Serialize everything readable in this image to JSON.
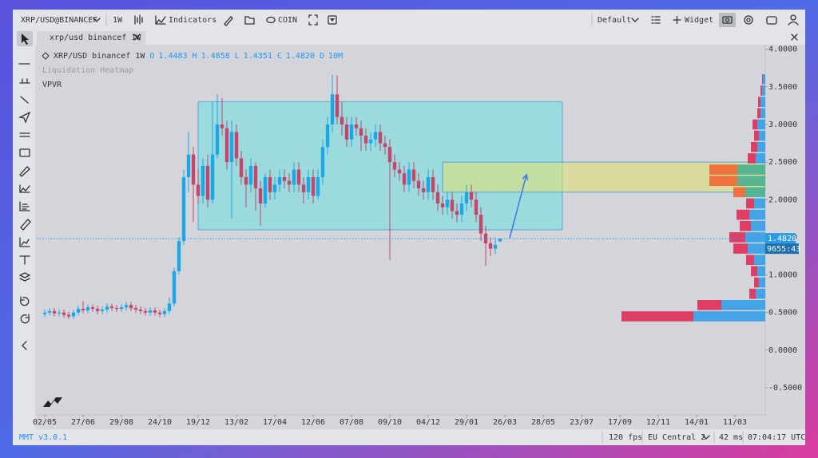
{
  "toolbar": {
    "symbol": "XRP/USD@BINANCEF",
    "interval": "1W",
    "indicators": "Indicators",
    "coin": "COIN",
    "layout": "Default",
    "widget": "Widget"
  },
  "tab": {
    "title": "xrp/usd binancef 1W"
  },
  "legend": {
    "symbol": "XRP/USD binancef 1W",
    "open_label": "O",
    "open": "1.4483",
    "high_label": "H",
    "high": "1.4858",
    "low_label": "L",
    "low": "1.4351",
    "close_label": "C",
    "close": "1.4820",
    "delta_label": "D",
    "volume": "10M"
  },
  "overlays": [
    "Liquidation Heatmap",
    "VPVR"
  ],
  "countdown": "9655:43",
  "status": {
    "version": "MMT v3.0.1",
    "fps": "120 fps",
    "region": "EU Central 2",
    "latency": "42 ms",
    "clock": "07:04:17 UTC"
  },
  "chart_data": {
    "type": "candlestick",
    "up_color": "#1ea7e6",
    "down_color": "#c4466a",
    "open": [
      0.48,
      0.5,
      0.52,
      0.49,
      0.5,
      0.47,
      0.45,
      0.5,
      0.55,
      0.53,
      0.57,
      0.55,
      0.52,
      0.54,
      0.58,
      0.56,
      0.55,
      0.57,
      0.6,
      0.56,
      0.54,
      0.52,
      0.5,
      0.53,
      0.5,
      0.48,
      0.52,
      0.62,
      1.05,
      1.45,
      2.3,
      2.6,
      2.2,
      2.05,
      2.45,
      2.0,
      2.6,
      3.0,
      2.95,
      2.5,
      2.9,
      2.55,
      2.3,
      2.2,
      2.45,
      2.15,
      1.95,
      2.3,
      2.1,
      2.2,
      2.3,
      2.25,
      2.2,
      2.4,
      2.2,
      2.1,
      2.3,
      2.05,
      2.3,
      2.7,
      3.0,
      3.4,
      3.1,
      3.0,
      2.8,
      3.0,
      2.95,
      2.85,
      2.75,
      2.8,
      2.9,
      2.75,
      2.7,
      2.5,
      2.4,
      2.35,
      2.2,
      2.4,
      2.25,
      2.15,
      2.1,
      2.3,
      2.1,
      1.95,
      1.9,
      2.0,
      1.85,
      1.8,
      1.95,
      2.1,
      2.0,
      1.8,
      1.55,
      1.42,
      1.35,
      1.4483
    ],
    "high": [
      0.54,
      0.56,
      0.56,
      0.54,
      0.54,
      0.51,
      0.54,
      0.59,
      0.65,
      0.61,
      0.61,
      0.59,
      0.58,
      0.62,
      0.62,
      0.6,
      0.61,
      0.64,
      0.64,
      0.6,
      0.58,
      0.56,
      0.57,
      0.57,
      0.54,
      0.56,
      0.7,
      1.1,
      1.5,
      2.4,
      2.9,
      2.7,
      2.4,
      2.55,
      2.6,
      3.3,
      3.4,
      3.35,
      3.05,
      3.05,
      3.0,
      2.65,
      2.4,
      2.55,
      2.5,
      2.25,
      2.35,
      2.4,
      2.3,
      2.4,
      2.4,
      2.35,
      2.5,
      2.5,
      2.3,
      2.4,
      2.4,
      2.4,
      2.8,
      3.1,
      3.66,
      3.65,
      3.3,
      3.1,
      3.1,
      3.1,
      3.05,
      2.95,
      2.9,
      3.0,
      3.0,
      2.85,
      2.8,
      2.6,
      2.5,
      2.45,
      2.5,
      2.5,
      2.35,
      2.25,
      2.4,
      2.4,
      2.2,
      2.05,
      2.1,
      2.1,
      1.95,
      2.05,
      2.2,
      2.2,
      2.1,
      1.9,
      1.65,
      1.5,
      1.5,
      1.4858
    ],
    "low": [
      0.44,
      0.46,
      0.45,
      0.45,
      0.43,
      0.41,
      0.41,
      0.46,
      0.49,
      0.49,
      0.51,
      0.48,
      0.48,
      0.5,
      0.52,
      0.51,
      0.51,
      0.53,
      0.52,
      0.5,
      0.48,
      0.46,
      0.46,
      0.46,
      0.44,
      0.44,
      0.48,
      0.58,
      1.0,
      1.4,
      2.1,
      1.7,
      1.95,
      1.95,
      1.9,
      1.95,
      2.55,
      2.85,
      2.4,
      1.75,
      2.45,
      2.2,
      1.9,
      2.1,
      1.85,
      1.65,
      1.9,
      2.0,
      2.0,
      2.1,
      2.15,
      2.1,
      2.1,
      2.1,
      1.95,
      2.0,
      1.95,
      2.0,
      2.2,
      2.6,
      2.9,
      3.0,
      2.85,
      2.7,
      2.7,
      2.85,
      2.65,
      2.65,
      2.65,
      2.7,
      2.65,
      2.6,
      1.2,
      2.3,
      2.25,
      2.1,
      2.1,
      2.15,
      2.05,
      2.0,
      2.0,
      2.0,
      1.85,
      1.8,
      1.8,
      1.75,
      1.7,
      1.7,
      1.85,
      1.9,
      1.7,
      1.45,
      1.12,
      1.25,
      1.28,
      1.4351
    ],
    "close": [
      0.5,
      0.52,
      0.49,
      0.5,
      0.47,
      0.45,
      0.5,
      0.55,
      0.53,
      0.57,
      0.55,
      0.52,
      0.54,
      0.58,
      0.56,
      0.55,
      0.57,
      0.6,
      0.56,
      0.54,
      0.52,
      0.5,
      0.53,
      0.5,
      0.48,
      0.52,
      0.62,
      1.05,
      1.45,
      2.3,
      2.6,
      2.2,
      2.05,
      2.45,
      2.0,
      2.6,
      3.0,
      2.95,
      2.5,
      2.9,
      2.55,
      2.3,
      2.2,
      2.45,
      2.15,
      1.95,
      2.3,
      2.1,
      2.2,
      2.3,
      2.25,
      2.2,
      2.4,
      2.2,
      2.1,
      2.3,
      2.05,
      2.3,
      2.7,
      3.0,
      3.4,
      3.1,
      3.0,
      2.8,
      3.0,
      2.95,
      2.85,
      2.75,
      2.8,
      2.9,
      2.75,
      2.7,
      2.5,
      2.4,
      2.35,
      2.2,
      2.4,
      2.25,
      2.15,
      2.1,
      2.3,
      2.1,
      1.95,
      1.9,
      2.0,
      1.85,
      1.8,
      1.95,
      2.1,
      2.0,
      1.8,
      1.55,
      1.42,
      1.35,
      1.4,
      1.482
    ],
    "xlim": [
      -1.67,
      150.33
    ],
    "xticks": [
      {
        "value": 0,
        "label": "02/05"
      },
      {
        "value": 8,
        "label": "27/06"
      },
      {
        "value": 16,
        "label": "29/08"
      },
      {
        "value": 24,
        "label": "24/10"
      },
      {
        "value": 32,
        "label": "19/12"
      },
      {
        "value": 40,
        "label": "13/02"
      },
      {
        "value": 48,
        "label": "17/04"
      },
      {
        "value": 56,
        "label": "12/06"
      },
      {
        "value": 64,
        "label": "07/08"
      },
      {
        "value": 72,
        "label": "09/10"
      },
      {
        "value": 80,
        "label": "04/12"
      },
      {
        "value": 88,
        "label": "29/01"
      },
      {
        "value": 96,
        "label": "26/03"
      },
      {
        "value": 104,
        "label": "28/05"
      },
      {
        "value": 112,
        "label": "23/07"
      },
      {
        "value": 120,
        "label": "17/09"
      },
      {
        "value": 128,
        "label": "12/11"
      },
      {
        "value": 136,
        "label": "14/01"
      },
      {
        "value": 144,
        "label": "11/03"
      }
    ],
    "ylim": [
      -0.86,
      4.06
    ],
    "yticks": [
      {
        "value": 4,
        "label": "4.0000"
      },
      {
        "value": 3.5,
        "label": "3.5000"
      },
      {
        "value": 3,
        "label": "3.0000"
      },
      {
        "value": 2.5,
        "label": "2.5000"
      },
      {
        "value": 2,
        "label": "2.0000"
      },
      {
        "value": 1.5,
        "label": "1.5000"
      },
      {
        "value": 1,
        "label": "1.0000"
      },
      {
        "value": 0.5,
        "label": "0.5000"
      },
      {
        "value": 0,
        "label": "0.0000"
      },
      {
        "value": -0.5,
        "label": "-0.5000"
      }
    ],
    "volume_profile": {
      "prices": [
        0.45,
        0.6,
        0.75,
        0.9,
        1.05,
        1.2,
        1.35,
        1.5,
        1.65,
        1.8,
        1.95,
        2.1,
        2.25,
        2.4,
        2.55,
        2.7,
        2.85,
        3.0,
        3.15,
        3.3,
        3.45,
        3.6
      ],
      "buy": [
        90,
        55,
        12,
        8,
        10,
        14,
        22,
        25,
        18,
        20,
        14,
        25,
        35,
        35,
        12,
        10,
        8,
        10,
        6,
        6,
        4,
        3
      ],
      "sell": [
        90,
        30,
        8,
        6,
        8,
        10,
        18,
        20,
        14,
        16,
        10,
        15,
        35,
        35,
        10,
        8,
        6,
        6,
        4,
        3,
        2,
        1
      ],
      "buy_color": "#2b9be8",
      "sell_color": "#e0234f",
      "value_area": [
        2.1,
        2.4
      ],
      "va_buy_color": "#3fae8c",
      "va_sell_color": "#f2602a"
    },
    "drawings": [
      {
        "type": "rectangle",
        "x": [
          32,
          108
        ],
        "y": [
          1.6,
          3.3
        ],
        "color": "#6fe0e0"
      },
      {
        "type": "rectangle",
        "x": [
          83,
          150.33
        ],
        "y": [
          2.1,
          2.5
        ],
        "color": "#e2e070"
      },
      {
        "type": "arrow",
        "x": [
          97,
          100.5
        ],
        "y": [
          1.49,
          2.33
        ],
        "color": "#3b7fe8"
      }
    ]
  }
}
